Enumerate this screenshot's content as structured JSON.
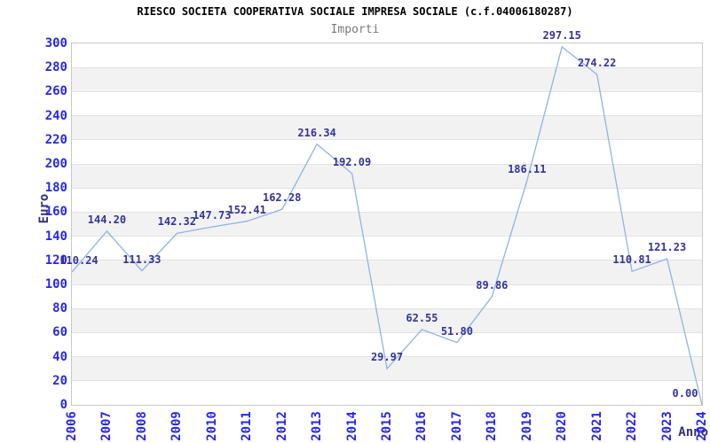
{
  "chart_data": {
    "type": "line",
    "title": "RIESCO SOCIETA COOPERATIVA SOCIALE IMPRESA SOCIALE (c.f.04006180287)",
    "subtitle": "Importi",
    "xlabel": "Anno",
    "ylabel": "Euro",
    "categories": [
      "2006",
      "2007",
      "2008",
      "2009",
      "2010",
      "2011",
      "2012",
      "2013",
      "2014",
      "2015",
      "2016",
      "2017",
      "2018",
      "2019",
      "2020",
      "2021",
      "2022",
      "2023",
      "2024"
    ],
    "values": [
      110.24,
      144.2,
      111.33,
      142.32,
      147.73,
      152.41,
      162.28,
      216.34,
      192.09,
      29.97,
      62.55,
      51.8,
      89.86,
      186.11,
      297.15,
      274.22,
      110.81,
      121.23,
      0.0
    ],
    "ylim": [
      0,
      300
    ],
    "ytick_step": 20,
    "grid": "horizontal-bands",
    "legend": "none",
    "colors": {
      "line": "#8fb4e3",
      "tick_label": "#2727e8",
      "data_label": "#333399",
      "axis_title": "#333377",
      "band": "#f2f2f2",
      "gridline": "#e2e2e2",
      "plot_border": "#c9c9c9",
      "title": "#000000",
      "subtitle": "#7a7a7a"
    }
  }
}
